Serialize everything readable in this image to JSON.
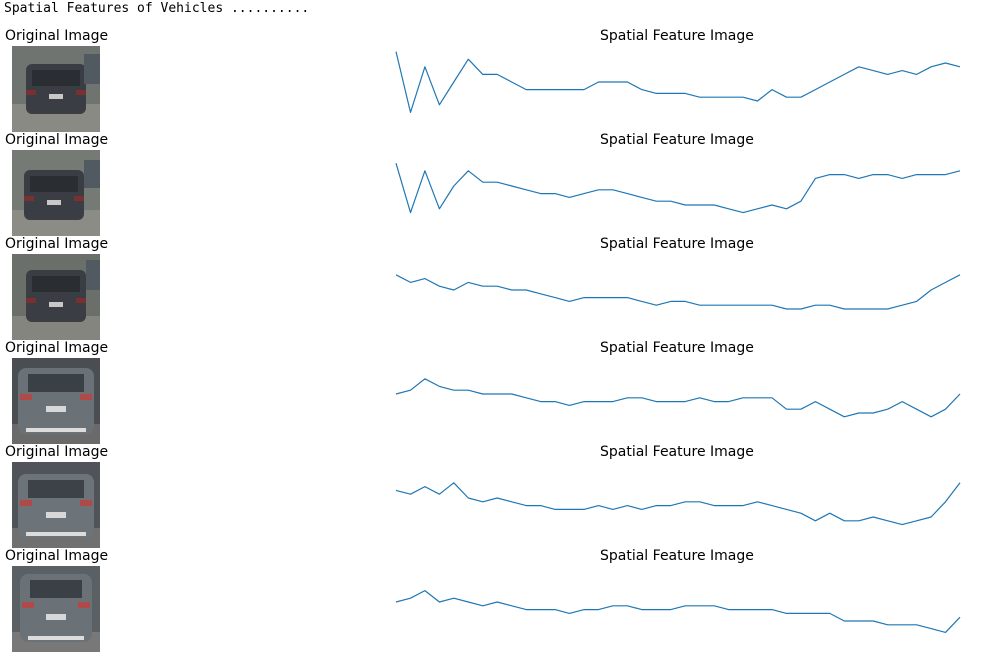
{
  "console": {
    "header_text": "Spatial Features of Vehicles .........."
  },
  "figure": {
    "rows": [
      {
        "left_title": "Original Image",
        "right_title": "Spatial Feature Image"
      },
      {
        "left_title": "Original Image",
        "right_title": "Spatial Feature Image"
      },
      {
        "left_title": "Original Image",
        "right_title": "Spatial Feature Image"
      },
      {
        "left_title": "Original Image",
        "right_title": "Spatial Feature Image"
      },
      {
        "left_title": "Original Image",
        "right_title": "Spatial Feature Image"
      },
      {
        "left_title": "Original Image",
        "right_title": "Spatial Feature Image"
      }
    ]
  },
  "chart_data": [
    {
      "type": "line",
      "title": "Spatial Feature Image",
      "series": [
        {
          "color": "#1f77b4",
          "values": [
            0.1,
            0.9,
            0.3,
            0.8,
            0.5,
            0.2,
            0.4,
            0.4,
            0.5,
            0.6,
            0.6,
            0.6,
            0.6,
            0.6,
            0.5,
            0.5,
            0.5,
            0.6,
            0.65,
            0.65,
            0.65,
            0.7,
            0.7,
            0.7,
            0.7,
            0.75,
            0.6,
            0.7,
            0.7,
            0.6,
            0.5,
            0.4,
            0.3,
            0.35,
            0.4,
            0.35,
            0.4,
            0.3,
            0.25,
            0.3
          ]
        }
      ]
    },
    {
      "type": "line",
      "title": "Spatial Feature Image",
      "series": [
        {
          "color": "#1f77b4",
          "values": [
            0.2,
            0.85,
            0.3,
            0.8,
            0.5,
            0.3,
            0.45,
            0.45,
            0.5,
            0.55,
            0.6,
            0.6,
            0.65,
            0.6,
            0.55,
            0.55,
            0.6,
            0.65,
            0.7,
            0.7,
            0.75,
            0.75,
            0.75,
            0.8,
            0.85,
            0.8,
            0.75,
            0.8,
            0.7,
            0.4,
            0.35,
            0.35,
            0.4,
            0.35,
            0.35,
            0.4,
            0.35,
            0.35,
            0.35,
            0.3
          ]
        }
      ]
    },
    {
      "type": "line",
      "title": "Spatial Feature Image",
      "series": [
        {
          "color": "#1f77b4",
          "values": [
            0.3,
            0.4,
            0.35,
            0.45,
            0.5,
            0.4,
            0.45,
            0.45,
            0.5,
            0.5,
            0.55,
            0.6,
            0.65,
            0.6,
            0.6,
            0.6,
            0.6,
            0.65,
            0.7,
            0.65,
            0.65,
            0.7,
            0.7,
            0.7,
            0.7,
            0.7,
            0.7,
            0.75,
            0.75,
            0.7,
            0.7,
            0.75,
            0.75,
            0.75,
            0.75,
            0.7,
            0.65,
            0.5,
            0.4,
            0.3
          ]
        }
      ]
    },
    {
      "type": "line",
      "title": "Spatial Feature Image",
      "series": [
        {
          "color": "#1f77b4",
          "values": [
            0.5,
            0.45,
            0.3,
            0.4,
            0.45,
            0.45,
            0.5,
            0.5,
            0.5,
            0.55,
            0.6,
            0.6,
            0.65,
            0.6,
            0.6,
            0.6,
            0.55,
            0.55,
            0.6,
            0.6,
            0.6,
            0.55,
            0.6,
            0.6,
            0.55,
            0.55,
            0.55,
            0.7,
            0.7,
            0.6,
            0.7,
            0.8,
            0.75,
            0.75,
            0.7,
            0.6,
            0.7,
            0.8,
            0.7,
            0.5
          ]
        }
      ]
    },
    {
      "type": "line",
      "title": "Spatial Feature Image",
      "series": [
        {
          "color": "#1f77b4",
          "values": [
            0.4,
            0.45,
            0.35,
            0.45,
            0.3,
            0.5,
            0.55,
            0.5,
            0.55,
            0.6,
            0.6,
            0.65,
            0.65,
            0.65,
            0.6,
            0.65,
            0.6,
            0.65,
            0.6,
            0.6,
            0.55,
            0.55,
            0.6,
            0.6,
            0.6,
            0.55,
            0.6,
            0.65,
            0.7,
            0.8,
            0.7,
            0.8,
            0.8,
            0.75,
            0.8,
            0.85,
            0.8,
            0.75,
            0.55,
            0.3
          ]
        }
      ]
    },
    {
      "type": "line",
      "title": "Spatial Feature Image",
      "series": [
        {
          "color": "#1f77b4",
          "values": [
            0.5,
            0.45,
            0.35,
            0.5,
            0.45,
            0.5,
            0.55,
            0.5,
            0.55,
            0.6,
            0.6,
            0.6,
            0.65,
            0.6,
            0.6,
            0.55,
            0.55,
            0.6,
            0.6,
            0.6,
            0.55,
            0.55,
            0.55,
            0.6,
            0.6,
            0.6,
            0.6,
            0.65,
            0.65,
            0.65,
            0.65,
            0.75,
            0.75,
            0.75,
            0.8,
            0.8,
            0.8,
            0.85,
            0.9,
            0.7
          ]
        }
      ]
    }
  ]
}
